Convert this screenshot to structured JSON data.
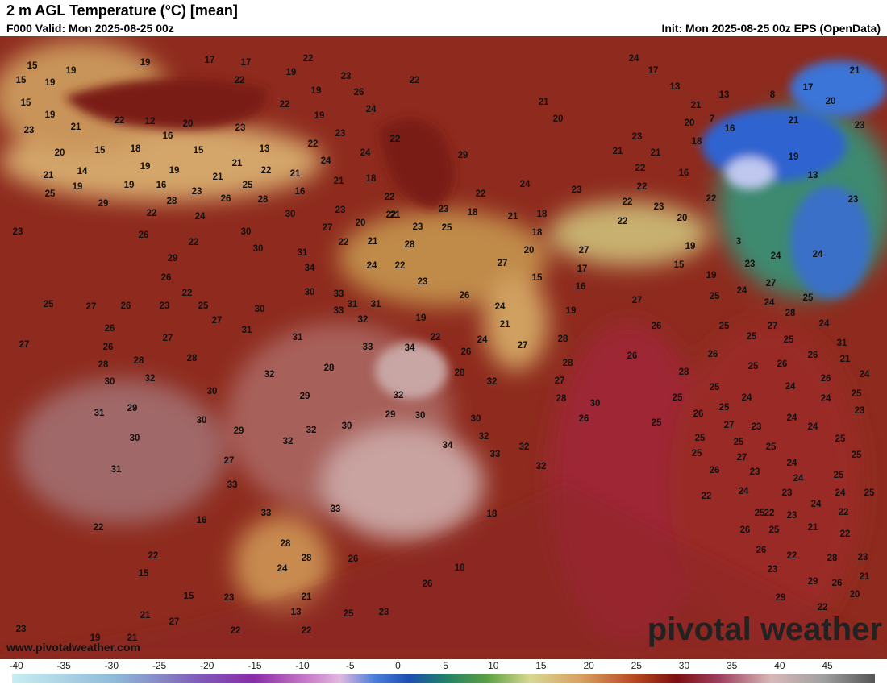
{
  "header": {
    "title": "2 m AGL Temperature (°C) [mean]",
    "valid": "F000 Valid: Mon 2025-08-25 00z",
    "init": "Init: Mon 2025-08-25 00z EPS (OpenData)"
  },
  "map": {
    "watermark": "www.pivotalweather.com",
    "logo": "pivotal weather",
    "labels": [
      15,
      19,
      19,
      17,
      17,
      22,
      15,
      19,
      15,
      19,
      23,
      21,
      22,
      12,
      20,
      23,
      22,
      19,
      22,
      19,
      23,
      26,
      24,
      22,
      20,
      15,
      18,
      16,
      15,
      13,
      21,
      14,
      19,
      19,
      19,
      25,
      19,
      16,
      21,
      22,
      21,
      21,
      23,
      28,
      26,
      25,
      28,
      16,
      22,
      19,
      23,
      24,
      24,
      21,
      18,
      22,
      29,
      23,
      29,
      22,
      24,
      26,
      22,
      29,
      26,
      22,
      23,
      25,
      27,
      30,
      30,
      30,
      31,
      34,
      27,
      22,
      23,
      20,
      21,
      21,
      28,
      24,
      22,
      23,
      25,
      23,
      18,
      22,
      24,
      23,
      21,
      18,
      18,
      20,
      15,
      27,
      23,
      26,
      24,
      21,
      24,
      27,
      26,
      22,
      19,
      22,
      22,
      31,
      31,
      33,
      33,
      30,
      32,
      33,
      34,
      28,
      32,
      25,
      27,
      26,
      26,
      27,
      27,
      26,
      28,
      28,
      32,
      28,
      31,
      30,
      31,
      30,
      30,
      31,
      29,
      30,
      30,
      29,
      32,
      28,
      29,
      32,
      32,
      30,
      32,
      29,
      30,
      30,
      34,
      32,
      32,
      33,
      32,
      31,
      27,
      33,
      18,
      33,
      33,
      16,
      22,
      28,
      28,
      26,
      24,
      22,
      15,
      15,
      23,
      21,
      21,
      27,
      25,
      23,
      26,
      18,
      13,
      22,
      22,
      23,
      19,
      21,
      24,
      17,
      13,
      13,
      8,
      17,
      20,
      21,
      21,
      20,
      7,
      16,
      21,
      23,
      21,
      20,
      23,
      21,
      21,
      22,
      16,
      18,
      19,
      13,
      23,
      22,
      22,
      23,
      20,
      22,
      22,
      27,
      17,
      16,
      19,
      15,
      3,
      24,
      24,
      23,
      19,
      27,
      25,
      25,
      24,
      24,
      28,
      24,
      19,
      27,
      26,
      25,
      25,
      27,
      25,
      26,
      21,
      24,
      31,
      28,
      28,
      27,
      28,
      30,
      26,
      26,
      28,
      26,
      25,
      25,
      25,
      24,
      25,
      26,
      24,
      26,
      25,
      23,
      24,
      24,
      24,
      25,
      25,
      25,
      25,
      27,
      23,
      27,
      26,
      25,
      25,
      25,
      26,
      23,
      24,
      22,
      24,
      24,
      25,
      24,
      25,
      23,
      24,
      25,
      22,
      23,
      26,
      25,
      21,
      22,
      22,
      26,
      22,
      28,
      23,
      23,
      21,
      29,
      26,
      29,
      20,
      22
    ]
  },
  "colorbar": {
    "ticks": [
      -40,
      -35,
      -30,
      -25,
      -20,
      -15,
      -10,
      -5,
      0,
      5,
      10,
      15,
      20,
      25,
      30,
      35,
      40,
      45
    ]
  }
}
